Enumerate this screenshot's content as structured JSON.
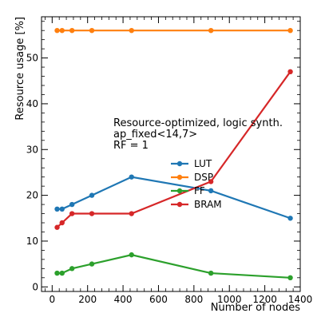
{
  "chart_data": {
    "type": "line",
    "xlabel": "Number of nodes",
    "ylabel": "Resource usage [%]",
    "xlim": [
      -60,
      1400
    ],
    "ylim": [
      -1,
      59
    ],
    "xticks": [
      0,
      200,
      400,
      600,
      800,
      1000,
      1200,
      1400
    ],
    "yticks": [
      0,
      10,
      20,
      30,
      40,
      50
    ],
    "grid": false,
    "legend_position": "center-right",
    "annotation": [
      "Resource-optimized, logic synth.",
      "ap_fixed<14,7>",
      "RF = 1"
    ],
    "x": [
      28,
      56,
      112,
      224,
      448,
      896,
      1344
    ],
    "series": [
      {
        "name": "LUT",
        "color": "#1f77b4",
        "values": [
          17,
          17,
          18,
          20,
          24,
          21,
          15
        ]
      },
      {
        "name": "DSP",
        "color": "#ff7f0e",
        "values": [
          56,
          56,
          56,
          56,
          56,
          56,
          56
        ]
      },
      {
        "name": "FF",
        "color": "#2ca02c",
        "values": [
          3,
          3,
          4,
          5,
          7,
          3,
          2
        ]
      },
      {
        "name": "BRAM",
        "color": "#d62728",
        "values": [
          13,
          14,
          16,
          16,
          16,
          23,
          47
        ]
      }
    ]
  }
}
